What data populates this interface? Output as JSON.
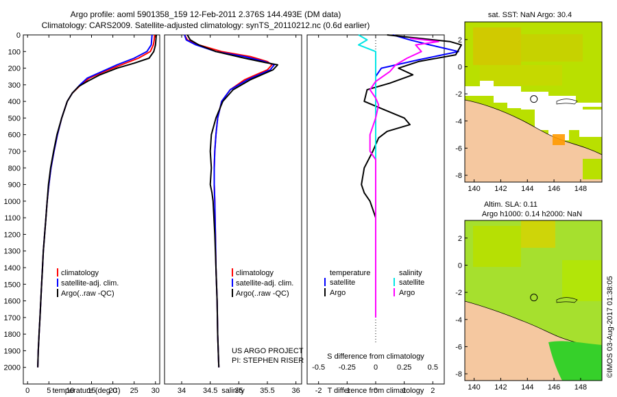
{
  "title_line1": "Argo profile: aoml 5901358_159 12-Feb-2011 2.376S 144.493E (DM data)",
  "title_line2": "Climatology: CARS2009. Satellite-adjusted climatology: synTS_20110212.nc (0.6d earlier)",
  "credit": {
    "line1": "US ARGO PROJECT",
    "line2": "PI: STEPHEN RISER"
  },
  "watermark": "©IMOS 03-Aug-2017 01:38:05",
  "colors": {
    "climatology": "#ff0000",
    "satellite": "#0000ff",
    "argo": "#000000",
    "sat_salinity": "#00e5e5",
    "argo_salinity": "#ff00ff",
    "land": "#f5c8a0",
    "sst_field": "#c8e000",
    "sla_field": "#a8e030"
  },
  "chart_data": [
    {
      "id": "temperature",
      "type": "line",
      "xlabel": "temperature (deg C)",
      "ylabel": "",
      "xlim": [
        -1,
        31
      ],
      "ylim": [
        2100,
        0
      ],
      "xticks": [
        0,
        5,
        10,
        15,
        20,
        25,
        30
      ],
      "yticks": [
        0,
        100,
        200,
        300,
        400,
        500,
        600,
        700,
        800,
        900,
        1000,
        1100,
        1200,
        1300,
        1400,
        1500,
        1600,
        1700,
        1800,
        1900,
        2000
      ],
      "legend": [
        "climatology",
        "satellite-adj. clim.",
        "Argo(..raw -QC)"
      ],
      "series": [
        {
          "name": "climatology",
          "color": "#ff0000",
          "points": [
            [
              29.8,
              0
            ],
            [
              29.7,
              30
            ],
            [
              29.5,
              60
            ],
            [
              28.8,
              100
            ],
            [
              26,
              140
            ],
            [
              22,
              180
            ],
            [
              18,
              220
            ],
            [
              14.5,
              260
            ],
            [
              12.5,
              300
            ],
            [
              10.5,
              350
            ],
            [
              9.3,
              400
            ],
            [
              8,
              500
            ],
            [
              7,
              600
            ],
            [
              6.2,
              700
            ],
            [
              5.5,
              800
            ],
            [
              5,
              900
            ],
            [
              4.6,
              1000
            ],
            [
              4.3,
              1100
            ],
            [
              4,
              1200
            ],
            [
              3.7,
              1300
            ],
            [
              3.5,
              1400
            ],
            [
              3.3,
              1500
            ],
            [
              3.1,
              1600
            ],
            [
              2.9,
              1700
            ],
            [
              2.7,
              1800
            ],
            [
              2.5,
              1900
            ],
            [
              2.4,
              2000
            ]
          ]
        },
        {
          "name": "satellite-adj. clim.",
          "color": "#0000ff",
          "points": [
            [
              29.2,
              0
            ],
            [
              29.1,
              30
            ],
            [
              29,
              60
            ],
            [
              28,
              100
            ],
            [
              25,
              140
            ],
            [
              21,
              180
            ],
            [
              17.5,
              220
            ],
            [
              14,
              260
            ],
            [
              12.3,
              300
            ],
            [
              10.5,
              350
            ],
            [
              9.3,
              400
            ],
            [
              8,
              500
            ],
            [
              7,
              600
            ],
            [
              6.2,
              700
            ],
            [
              5.5,
              800
            ],
            [
              5,
              900
            ],
            [
              4.6,
              1000
            ],
            [
              4.3,
              1100
            ],
            [
              4,
              1200
            ],
            [
              3.7,
              1300
            ],
            [
              3.5,
              1400
            ],
            [
              3.3,
              1500
            ],
            [
              3.1,
              1600
            ],
            [
              2.9,
              1700
            ],
            [
              2.7,
              1800
            ],
            [
              2.5,
              1900
            ],
            [
              2.4,
              2000
            ]
          ]
        },
        {
          "name": "Argo(..raw -QC)",
          "color": "#000000",
          "points": [
            [
              30.2,
              0
            ],
            [
              30.1,
              30
            ],
            [
              30,
              60
            ],
            [
              29.6,
              100
            ],
            [
              28.5,
              140
            ],
            [
              25,
              170
            ],
            [
              21,
              200
            ],
            [
              17,
              240
            ],
            [
              14,
              280
            ],
            [
              12,
              310
            ],
            [
              10.5,
              350
            ],
            [
              9.3,
              400
            ],
            [
              8,
              500
            ],
            [
              6.9,
              600
            ],
            [
              6.1,
              700
            ],
            [
              5.4,
              800
            ],
            [
              4.9,
              900
            ],
            [
              4.6,
              1000
            ],
            [
              4.3,
              1100
            ],
            [
              4,
              1200
            ],
            [
              3.7,
              1300
            ],
            [
              3.5,
              1400
            ],
            [
              3.3,
              1500
            ],
            [
              3.1,
              1600
            ],
            [
              2.9,
              1700
            ],
            [
              2.7,
              1800
            ],
            [
              2.5,
              1900
            ],
            [
              2.4,
              2000
            ]
          ]
        }
      ]
    },
    {
      "id": "salinity",
      "type": "line",
      "xlabel": "salinity",
      "xlim": [
        33.7,
        36.1
      ],
      "ylim": [
        2100,
        0
      ],
      "xticks": [
        34,
        34.5,
        35,
        35.5,
        36
      ],
      "xticklabels": [
        "34",
        "34.5",
        "35",
        "35.5",
        "36"
      ],
      "legend": [
        "climatology",
        "satellite-adj. clim.",
        "Argo(..raw -QC)"
      ],
      "series": [
        {
          "name": "climatology",
          "color": "#ff0000",
          "points": [
            [
              34.05,
              0
            ],
            [
              34.1,
              30
            ],
            [
              34.3,
              60
            ],
            [
              34.7,
              100
            ],
            [
              35.2,
              130
            ],
            [
              35.5,
              160
            ],
            [
              35.58,
              180
            ],
            [
              35.5,
              210
            ],
            [
              35.1,
              270
            ],
            [
              34.85,
              330
            ],
            [
              34.7,
              400
            ],
            [
              34.63,
              500
            ],
            [
              34.6,
              600
            ],
            [
              34.58,
              700
            ],
            [
              34.57,
              800
            ],
            [
              34.57,
              900
            ],
            [
              34.58,
              1000
            ],
            [
              34.59,
              1200
            ],
            [
              34.6,
              1400
            ],
            [
              34.62,
              1600
            ],
            [
              34.63,
              1800
            ],
            [
              34.65,
              2000
            ]
          ]
        },
        {
          "name": "satellite-adj. clim.",
          "color": "#0000ff",
          "points": [
            [
              34.05,
              0
            ],
            [
              34.08,
              30
            ],
            [
              34.25,
              60
            ],
            [
              34.6,
              100
            ],
            [
              35.1,
              130
            ],
            [
              35.45,
              160
            ],
            [
              35.62,
              180
            ],
            [
              35.55,
              210
            ],
            [
              35.15,
              270
            ],
            [
              34.85,
              330
            ],
            [
              34.7,
              400
            ],
            [
              34.63,
              500
            ],
            [
              34.6,
              600
            ],
            [
              34.58,
              700
            ],
            [
              34.57,
              800
            ],
            [
              34.57,
              900
            ],
            [
              34.58,
              1000
            ],
            [
              34.59,
              1200
            ],
            [
              34.6,
              1400
            ],
            [
              34.62,
              1600
            ],
            [
              34.63,
              1800
            ],
            [
              34.65,
              2000
            ]
          ]
        },
        {
          "name": "Argo(..raw -QC)",
          "color": "#000000",
          "points": [
            [
              34.1,
              0
            ],
            [
              34.15,
              30
            ],
            [
              34.3,
              60
            ],
            [
              34.6,
              100
            ],
            [
              35.1,
              140
            ],
            [
              35.45,
              165
            ],
            [
              35.68,
              180
            ],
            [
              35.6,
              210
            ],
            [
              35.2,
              270
            ],
            [
              34.9,
              330
            ],
            [
              34.72,
              400
            ],
            [
              34.6,
              500
            ],
            [
              34.52,
              600
            ],
            [
              34.5,
              700
            ],
            [
              34.52,
              800
            ],
            [
              34.5,
              900
            ],
            [
              34.53,
              950
            ],
            [
              34.55,
              1000
            ],
            [
              34.58,
              1200
            ],
            [
              34.6,
              1400
            ],
            [
              34.62,
              1600
            ],
            [
              34.63,
              1800
            ],
            [
              34.65,
              2000
            ]
          ]
        }
      ]
    },
    {
      "id": "differences",
      "type": "line",
      "xlabel": "T difference from climatology",
      "xlabel_top": "S difference from climatology",
      "xlim": [
        -2.4,
        2.4
      ],
      "ylim": [
        2100,
        0
      ],
      "xticks": [
        -2,
        -1,
        0,
        1,
        2
      ],
      "s_ticklabels": [
        "-0.5",
        "-0.25",
        "0",
        "0.25",
        "0.5"
      ],
      "legend_titles": [
        "temperature",
        "salinity"
      ],
      "legend": [
        "satellite",
        "Argo",
        "satellite",
        "Argo"
      ],
      "series": [
        {
          "name": "temperature satellite",
          "color": "#0000ff",
          "points": [
            [
              0.6,
              0
            ],
            [
              1.2,
              30
            ],
            [
              1.9,
              60
            ],
            [
              2.9,
              100
            ],
            [
              1.5,
              150
            ],
            [
              0.2,
              200
            ],
            [
              0,
              250
            ],
            [
              0,
              300
            ],
            [
              0,
              400
            ],
            [
              0,
              600
            ],
            [
              0,
              800
            ],
            [
              0,
              1000
            ],
            [
              0,
              1200
            ],
            [
              0,
              1400
            ],
            [
              0,
              1600
            ],
            [
              0,
              1700
            ]
          ]
        },
        {
          "name": "temperature Argo",
          "color": "#000000",
          "points": [
            [
              0.4,
              0
            ],
            [
              1.5,
              20
            ],
            [
              2.6,
              40
            ],
            [
              3,
              60
            ],
            [
              2.8,
              120
            ],
            [
              1.5,
              160
            ],
            [
              0.8,
              200
            ],
            [
              1.3,
              240
            ],
            [
              0.5,
              290
            ],
            [
              -0.3,
              330
            ],
            [
              -0.4,
              400
            ],
            [
              0.3,
              450
            ],
            [
              1,
              500
            ],
            [
              1.2,
              540
            ],
            [
              0.4,
              580
            ],
            [
              0.1,
              620
            ],
            [
              -0.1,
              700
            ],
            [
              -0.4,
              800
            ],
            [
              -0.5,
              900
            ],
            [
              -0.4,
              950
            ],
            [
              -0.2,
              1000
            ],
            [
              0,
              1100
            ],
            [
              0,
              1200
            ],
            [
              0,
              1300
            ],
            [
              0,
              1400
            ],
            [
              0,
              1500
            ],
            [
              0,
              1600
            ],
            [
              0,
              1700
            ]
          ]
        },
        {
          "name": "salinity satellite",
          "color": "#00e5e5",
          "points": [
            [
              -0.6,
              0
            ],
            [
              -0.3,
              30
            ],
            [
              -0.6,
              60
            ],
            [
              -0.3,
              80
            ],
            [
              0,
              100
            ],
            [
              0,
              200
            ],
            [
              0,
              400
            ],
            [
              0,
              600
            ],
            [
              0,
              800
            ],
            [
              0,
              1000
            ],
            [
              0,
              1200
            ],
            [
              0,
              1400
            ],
            [
              0,
              1600
            ],
            [
              0,
              1700
            ]
          ]
        },
        {
          "name": "salinity Argo",
          "color": "#ff00ff",
          "points": [
            [
              1.2,
              20
            ],
            [
              2.2,
              40
            ],
            [
              1.4,
              60
            ],
            [
              1.6,
              100
            ],
            [
              1.1,
              140
            ],
            [
              0.7,
              180
            ],
            [
              0.5,
              220
            ],
            [
              0,
              280
            ],
            [
              -0.2,
              330
            ],
            [
              0,
              380
            ],
            [
              0.1,
              420
            ],
            [
              0,
              500
            ],
            [
              -0.2,
              600
            ],
            [
              -0.2,
              700
            ],
            [
              0,
              750
            ],
            [
              0,
              800
            ],
            [
              0,
              1000
            ],
            [
              0,
              1200
            ],
            [
              0,
              1400
            ],
            [
              0,
              1600
            ],
            [
              0,
              1700
            ]
          ]
        }
      ]
    },
    {
      "id": "sst-map",
      "type": "heatmap",
      "title": "sat. SST: NaN Argo: 30.4",
      "xlim": [
        139.3,
        149.6
      ],
      "ylim": [
        -8.5,
        3.3
      ],
      "xticks": [
        140,
        142,
        144,
        146,
        148
      ],
      "yticks": [
        2,
        0,
        -2,
        -4,
        -6,
        -8
      ],
      "marker": [
        144.49,
        -2.38
      ]
    },
    {
      "id": "sla-map",
      "type": "heatmap",
      "title": "Altim. SLA: 0.11",
      "subtitle": "Argo h1000: 0.14 h2000: NaN",
      "xlim": [
        139.3,
        149.6
      ],
      "ylim": [
        -8.5,
        3.3
      ],
      "xticks": [
        140,
        142,
        144,
        146,
        148
      ],
      "yticks": [
        2,
        0,
        -2,
        -4,
        -6,
        -8
      ],
      "marker": [
        144.49,
        -2.38
      ]
    }
  ]
}
